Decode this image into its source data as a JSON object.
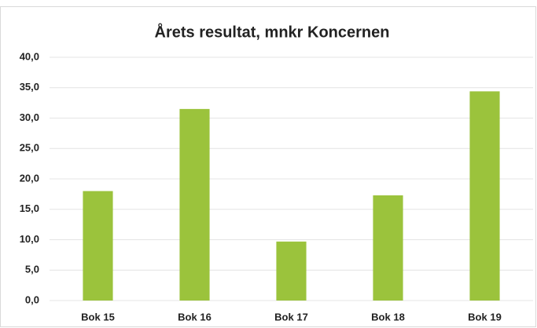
{
  "chart_data": {
    "type": "bar",
    "title": "Årets resultat, mnkr Koncernen",
    "categories": [
      "Bok 15",
      "Bok 16",
      "Bok 17",
      "Bok 18",
      "Bok 19"
    ],
    "values": [
      18.0,
      31.5,
      9.7,
      17.3,
      34.4
    ],
    "color": "#9bc33c",
    "ylim": [
      0,
      40
    ],
    "yticks": [
      {
        "value": 0,
        "label": "0,0"
      },
      {
        "value": 5,
        "label": "5,0"
      },
      {
        "value": 10,
        "label": "10,0"
      },
      {
        "value": 15,
        "label": "15,0"
      },
      {
        "value": 20,
        "label": "20,0"
      },
      {
        "value": 25,
        "label": "25,0"
      },
      {
        "value": 30,
        "label": "30,0"
      },
      {
        "value": 35,
        "label": "35,0"
      },
      {
        "value": 40,
        "label": "40,0"
      }
    ],
    "grid": true
  }
}
